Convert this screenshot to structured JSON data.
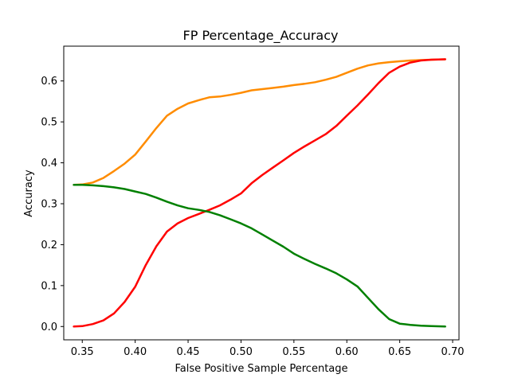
{
  "chart_data": {
    "type": "line",
    "title": "FP Percentage_Accuracy",
    "xlabel": "False Positive Sample Percentage",
    "ylabel": "Accuracy",
    "xlim": [
      0.3325,
      0.706
    ],
    "ylim": [
      -0.0325,
      0.685
    ],
    "xticks": [
      0.35,
      0.4,
      0.45,
      0.5,
      0.55,
      0.6,
      0.65,
      0.7
    ],
    "xtick_labels": [
      "0.35",
      "0.40",
      "0.45",
      "0.50",
      "0.55",
      "0.60",
      "0.65",
      "0.70"
    ],
    "yticks": [
      0.0,
      0.1,
      0.2,
      0.3,
      0.4,
      0.5,
      0.6
    ],
    "ytick_labels": [
      "0.0",
      "0.1",
      "0.2",
      "0.3",
      "0.4",
      "0.5",
      "0.6"
    ],
    "grid": false,
    "legend": "none",
    "series": [
      {
        "color": "#ff8c00",
        "x": [
          0.342,
          0.35,
          0.36,
          0.37,
          0.38,
          0.39,
          0.4,
          0.41,
          0.42,
          0.43,
          0.44,
          0.45,
          0.46,
          0.47,
          0.48,
          0.49,
          0.5,
          0.51,
          0.52,
          0.53,
          0.54,
          0.55,
          0.56,
          0.57,
          0.58,
          0.59,
          0.6,
          0.61,
          0.62,
          0.63,
          0.64,
          0.65,
          0.66,
          0.67,
          0.68,
          0.693
        ],
        "y": [
          0.346,
          0.347,
          0.352,
          0.363,
          0.38,
          0.398,
          0.42,
          0.452,
          0.485,
          0.515,
          0.532,
          0.545,
          0.553,
          0.56,
          0.562,
          0.566,
          0.571,
          0.577,
          0.58,
          0.583,
          0.586,
          0.59,
          0.593,
          0.597,
          0.603,
          0.61,
          0.62,
          0.63,
          0.638,
          0.643,
          0.646,
          0.648,
          0.65,
          0.651,
          0.652,
          0.653
        ]
      },
      {
        "color": "#ff0000",
        "x": [
          0.342,
          0.35,
          0.36,
          0.37,
          0.38,
          0.39,
          0.4,
          0.41,
          0.42,
          0.43,
          0.44,
          0.45,
          0.46,
          0.47,
          0.48,
          0.49,
          0.5,
          0.51,
          0.52,
          0.53,
          0.54,
          0.55,
          0.56,
          0.57,
          0.58,
          0.59,
          0.6,
          0.61,
          0.62,
          0.63,
          0.64,
          0.65,
          0.66,
          0.67,
          0.68,
          0.693
        ],
        "y": [
          0.0,
          0.001,
          0.006,
          0.015,
          0.032,
          0.06,
          0.097,
          0.15,
          0.196,
          0.232,
          0.252,
          0.265,
          0.275,
          0.285,
          0.296,
          0.31,
          0.325,
          0.35,
          0.37,
          0.388,
          0.406,
          0.424,
          0.44,
          0.455,
          0.47,
          0.49,
          0.515,
          0.54,
          0.567,
          0.595,
          0.62,
          0.635,
          0.645,
          0.65,
          0.652,
          0.653
        ]
      },
      {
        "color": "#008000",
        "x": [
          0.342,
          0.35,
          0.36,
          0.37,
          0.38,
          0.39,
          0.4,
          0.41,
          0.42,
          0.43,
          0.44,
          0.45,
          0.46,
          0.47,
          0.48,
          0.49,
          0.5,
          0.51,
          0.52,
          0.53,
          0.54,
          0.55,
          0.56,
          0.57,
          0.58,
          0.59,
          0.6,
          0.61,
          0.62,
          0.63,
          0.64,
          0.65,
          0.66,
          0.67,
          0.68,
          0.693
        ],
        "y": [
          0.346,
          0.346,
          0.345,
          0.343,
          0.34,
          0.336,
          0.33,
          0.324,
          0.315,
          0.305,
          0.296,
          0.289,
          0.285,
          0.28,
          0.272,
          0.262,
          0.252,
          0.24,
          0.225,
          0.21,
          0.195,
          0.178,
          0.165,
          0.153,
          0.142,
          0.13,
          0.115,
          0.098,
          0.07,
          0.042,
          0.018,
          0.007,
          0.004,
          0.002,
          0.001,
          0.0
        ]
      }
    ]
  }
}
